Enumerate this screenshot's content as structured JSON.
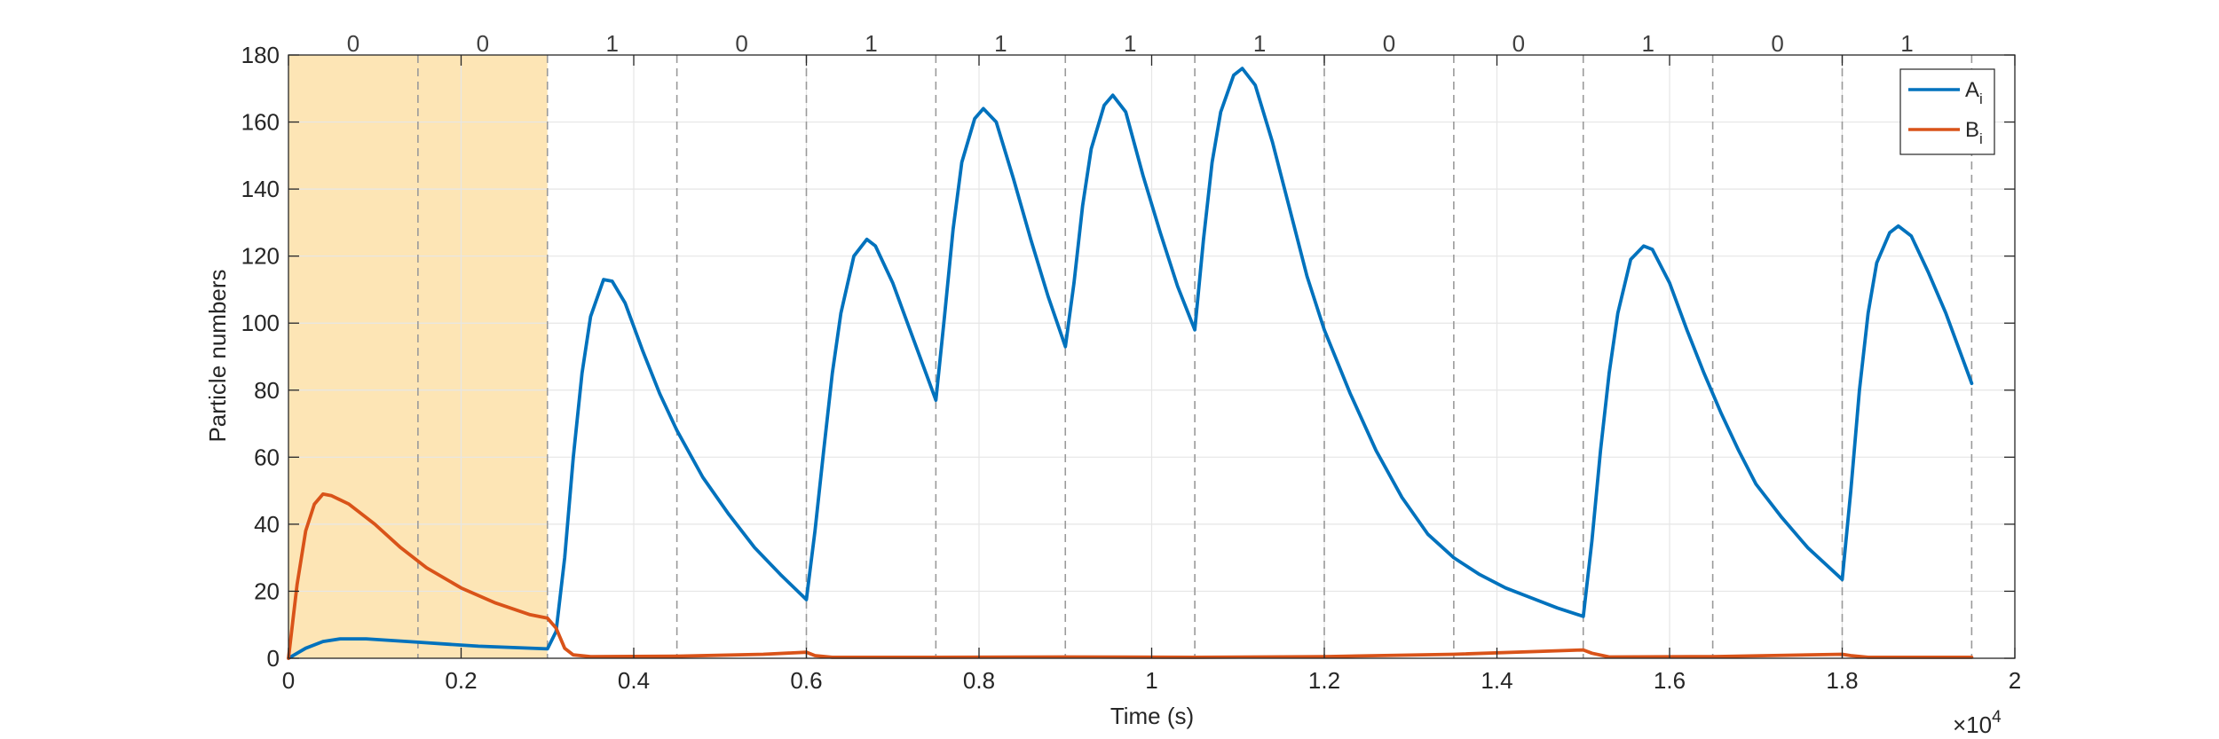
{
  "chart_data": {
    "type": "line",
    "title": "",
    "xlabel": "Time (s)",
    "ylabel": "Particle numbers",
    "x_exponent_label": "×10",
    "x_exponent_power": "4",
    "xlim": [
      0,
      20000
    ],
    "ylim": [
      0,
      180
    ],
    "x_ticks": [
      0,
      2000,
      4000,
      6000,
      8000,
      10000,
      12000,
      14000,
      16000,
      18000,
      20000
    ],
    "x_tick_labels": [
      "0",
      "0.2",
      "0.4",
      "0.6",
      "0.8",
      "1",
      "1.2",
      "1.4",
      "1.6",
      "1.8",
      "2"
    ],
    "y_ticks": [
      0,
      20,
      40,
      60,
      80,
      100,
      120,
      140,
      160,
      180
    ],
    "y_tick_labels": [
      "0",
      "20",
      "40",
      "60",
      "80",
      "100",
      "120",
      "140",
      "160",
      "180"
    ],
    "grid": true,
    "legend_position": "top-right",
    "shaded_region": {
      "x_start": 0,
      "x_end": 3000,
      "color": "#fde5b5"
    },
    "interval_boundaries": [
      1500,
      3000,
      4500,
      6000,
      7500,
      9000,
      10500,
      12000,
      13500,
      15000,
      16500,
      18000,
      19500
    ],
    "interval_labels": [
      {
        "x": 750,
        "label": "0"
      },
      {
        "x": 2250,
        "label": "0"
      },
      {
        "x": 3750,
        "label": "1"
      },
      {
        "x": 5250,
        "label": "0"
      },
      {
        "x": 6750,
        "label": "1"
      },
      {
        "x": 8250,
        "label": "1"
      },
      {
        "x": 9750,
        "label": "1"
      },
      {
        "x": 11250,
        "label": "1"
      },
      {
        "x": 12750,
        "label": "0"
      },
      {
        "x": 14250,
        "label": "0"
      },
      {
        "x": 15750,
        "label": "1"
      },
      {
        "x": 17250,
        "label": "0"
      },
      {
        "x": 18750,
        "label": "1"
      }
    ],
    "series": [
      {
        "name": "A",
        "subscript": "i",
        "color": "#0072bd",
        "points": [
          [
            0,
            0
          ],
          [
            200,
            3
          ],
          [
            400,
            5
          ],
          [
            600,
            5.8
          ],
          [
            900,
            5.8
          ],
          [
            1500,
            4.8
          ],
          [
            2200,
            3.6
          ],
          [
            3000,
            2.8
          ],
          [
            3100,
            8
          ],
          [
            3200,
            30
          ],
          [
            3300,
            60
          ],
          [
            3400,
            85
          ],
          [
            3500,
            102
          ],
          [
            3650,
            113
          ],
          [
            3750,
            112.5
          ],
          [
            3900,
            106
          ],
          [
            4100,
            92
          ],
          [
            4300,
            79
          ],
          [
            4500,
            68
          ],
          [
            4800,
            54
          ],
          [
            5100,
            43
          ],
          [
            5400,
            33
          ],
          [
            5700,
            25
          ],
          [
            6000,
            17.5
          ],
          [
            6100,
            38
          ],
          [
            6200,
            62
          ],
          [
            6300,
            85
          ],
          [
            6400,
            103
          ],
          [
            6550,
            120
          ],
          [
            6700,
            125
          ],
          [
            6800,
            123
          ],
          [
            7000,
            112
          ],
          [
            7200,
            98
          ],
          [
            7400,
            84
          ],
          [
            7500,
            77
          ],
          [
            7600,
            102
          ],
          [
            7700,
            128
          ],
          [
            7800,
            148
          ],
          [
            7950,
            161
          ],
          [
            8050,
            164
          ],
          [
            8200,
            160
          ],
          [
            8400,
            143
          ],
          [
            8600,
            125
          ],
          [
            8800,
            108
          ],
          [
            9000,
            93
          ],
          [
            9100,
            112
          ],
          [
            9200,
            135
          ],
          [
            9300,
            152
          ],
          [
            9450,
            165
          ],
          [
            9550,
            168
          ],
          [
            9700,
            163
          ],
          [
            9900,
            144
          ],
          [
            10100,
            127
          ],
          [
            10300,
            111
          ],
          [
            10500,
            98
          ],
          [
            10600,
            125
          ],
          [
            10700,
            148
          ],
          [
            10800,
            163
          ],
          [
            10950,
            174
          ],
          [
            11050,
            176
          ],
          [
            11200,
            171
          ],
          [
            11400,
            154
          ],
          [
            11600,
            134
          ],
          [
            11800,
            114
          ],
          [
            12000,
            98
          ],
          [
            12300,
            79
          ],
          [
            12600,
            62
          ],
          [
            12900,
            48
          ],
          [
            13200,
            37
          ],
          [
            13500,
            30
          ],
          [
            13800,
            25
          ],
          [
            14100,
            21
          ],
          [
            14400,
            18
          ],
          [
            14700,
            15
          ],
          [
            15000,
            12.5
          ],
          [
            15100,
            35
          ],
          [
            15200,
            62
          ],
          [
            15300,
            85
          ],
          [
            15400,
            103
          ],
          [
            15550,
            119
          ],
          [
            15700,
            123
          ],
          [
            15800,
            122
          ],
          [
            16000,
            112
          ],
          [
            16200,
            98
          ],
          [
            16400,
            85
          ],
          [
            16600,
            73
          ],
          [
            16800,
            62
          ],
          [
            17000,
            52
          ],
          [
            17300,
            42
          ],
          [
            17600,
            33
          ],
          [
            18000,
            23.5
          ],
          [
            18100,
            50
          ],
          [
            18200,
            80
          ],
          [
            18300,
            103
          ],
          [
            18400,
            118
          ],
          [
            18550,
            127
          ],
          [
            18650,
            129
          ],
          [
            18800,
            126
          ],
          [
            19000,
            115
          ],
          [
            19200,
            103
          ],
          [
            19500,
            82
          ]
        ]
      },
      {
        "name": "B",
        "subscript": "i",
        "color": "#d95319",
        "points": [
          [
            0,
            0
          ],
          [
            100,
            22
          ],
          [
            200,
            38
          ],
          [
            300,
            46
          ],
          [
            400,
            49
          ],
          [
            500,
            48.5
          ],
          [
            700,
            46
          ],
          [
            1000,
            40
          ],
          [
            1300,
            33
          ],
          [
            1600,
            27
          ],
          [
            2000,
            21
          ],
          [
            2400,
            16.5
          ],
          [
            2800,
            13
          ],
          [
            3000,
            12
          ],
          [
            3100,
            9
          ],
          [
            3200,
            3
          ],
          [
            3300,
            1
          ],
          [
            3500,
            0.5
          ],
          [
            4500,
            0.6
          ],
          [
            5500,
            1.2
          ],
          [
            6000,
            1.8
          ],
          [
            6100,
            0.8
          ],
          [
            6300,
            0.3
          ],
          [
            7500,
            0.3
          ],
          [
            9000,
            0.4
          ],
          [
            10500,
            0.3
          ],
          [
            12000,
            0.5
          ],
          [
            13500,
            1.2
          ],
          [
            15000,
            2.5
          ],
          [
            15100,
            1.5
          ],
          [
            15300,
            0.4
          ],
          [
            16500,
            0.5
          ],
          [
            18000,
            1.2
          ],
          [
            18100,
            0.8
          ],
          [
            18300,
            0.3
          ],
          [
            19500,
            0.3
          ]
        ]
      }
    ]
  }
}
